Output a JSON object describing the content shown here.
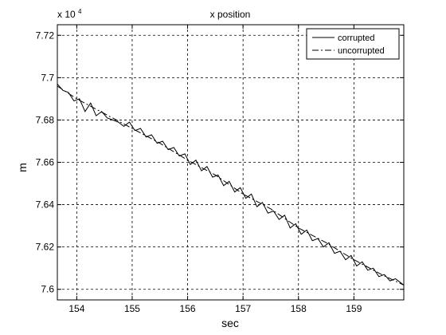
{
  "chart_data": {
    "type": "line",
    "title": "x position",
    "xlabel": "sec",
    "ylabel": "m",
    "xlim": [
      153.65,
      159.9
    ],
    "ylim": [
      7.595,
      7.725
    ],
    "y_multiplier": "x 10",
    "y_multiplier_exponent": "4",
    "x_ticks": [
      154,
      155,
      156,
      157,
      158,
      159
    ],
    "x_tick_labels": [
      "154",
      "155",
      "156",
      "157",
      "158",
      "159"
    ],
    "y_ticks": [
      7.6,
      7.62,
      7.64,
      7.66,
      7.68,
      7.7,
      7.72
    ],
    "y_tick_labels": [
      "7.6",
      "7.62",
      "7.64",
      "7.66",
      "7.68",
      "7.7",
      "7.72"
    ],
    "grid": true,
    "legend_position": "top-right",
    "series": [
      {
        "name": "corrupted",
        "style": "solid",
        "color": "#000000",
        "x": [
          153.65,
          153.75,
          153.85,
          153.95,
          154.05,
          154.15,
          154.25,
          154.35,
          154.45,
          154.55,
          154.65,
          154.75,
          154.85,
          154.95,
          155.05,
          155.15,
          155.25,
          155.35,
          155.45,
          155.55,
          155.65,
          155.75,
          155.85,
          155.95,
          156.05,
          156.15,
          156.25,
          156.35,
          156.45,
          156.55,
          156.65,
          156.75,
          156.85,
          156.95,
          157.05,
          157.15,
          157.25,
          157.35,
          157.45,
          157.55,
          157.65,
          157.75,
          157.85,
          157.95,
          158.05,
          158.15,
          158.25,
          158.35,
          158.45,
          158.55,
          158.65,
          158.75,
          158.85,
          158.95,
          159.05,
          159.15,
          159.25,
          159.35,
          159.45,
          159.55,
          159.65,
          159.75,
          159.85,
          159.9
        ],
        "y": [
          7.697,
          7.694,
          7.693,
          7.689,
          7.69,
          7.684,
          7.688,
          7.682,
          7.684,
          7.681,
          7.68,
          7.679,
          7.677,
          7.679,
          7.675,
          7.676,
          7.672,
          7.673,
          7.669,
          7.67,
          7.666,
          7.667,
          7.663,
          7.664,
          7.659,
          7.661,
          7.656,
          7.658,
          7.653,
          7.654,
          7.649,
          7.651,
          7.646,
          7.648,
          7.643,
          7.645,
          7.639,
          7.641,
          7.636,
          7.637,
          7.633,
          7.635,
          7.629,
          7.631,
          7.626,
          7.628,
          7.623,
          7.624,
          7.62,
          7.622,
          7.617,
          7.618,
          7.614,
          7.616,
          7.611,
          7.613,
          7.609,
          7.61,
          7.606,
          7.607,
          7.604,
          7.605,
          7.603,
          7.602
        ]
      },
      {
        "name": "uncorrupted",
        "style": "dashdot",
        "color": "#000000",
        "x": [
          153.65,
          154.0,
          154.5,
          155.0,
          155.5,
          156.0,
          156.5,
          157.0,
          157.5,
          158.0,
          158.5,
          159.0,
          159.5,
          159.9
        ],
        "y": [
          7.696,
          7.69,
          7.683,
          7.676,
          7.669,
          7.661,
          7.654,
          7.645,
          7.638,
          7.629,
          7.622,
          7.614,
          7.607,
          7.602
        ]
      }
    ]
  }
}
